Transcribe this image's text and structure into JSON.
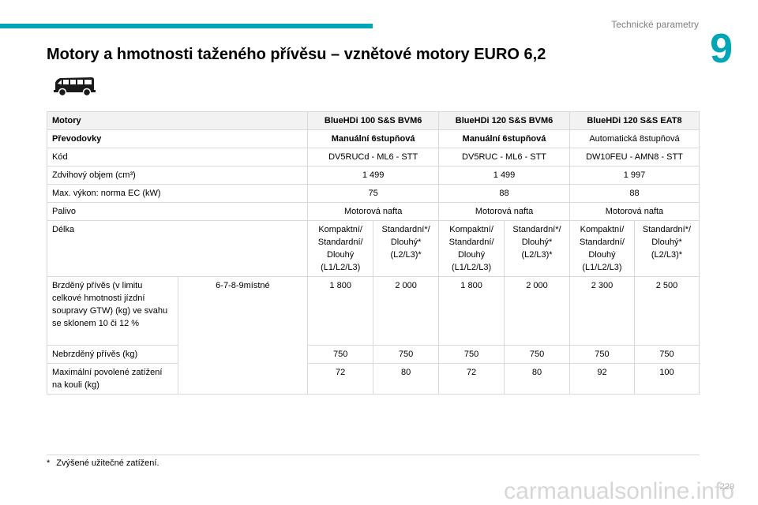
{
  "header": {
    "section_title": "Technické parametry",
    "chapter_number": "9",
    "accent_color": "#00a6b5"
  },
  "page_title": "Motory a hmotnosti taženého přívěsu – vznětové motory EURO 6,2",
  "vehicle_icon": "van-icon",
  "table": {
    "engines_label": "Motory",
    "engines": [
      "BlueHDi 100 S&S BVM6",
      "BlueHDi 120 S&S BVM6",
      "BlueHDi 120 S&S EAT8"
    ],
    "gearbox_label": "Převodovky",
    "gearboxes": [
      "Manuální 6stupňová",
      "Manuální 6stupňová",
      "Automatická 8stupňová"
    ],
    "code_label": "Kód",
    "codes": [
      "DV5RUCd - ML6 - STT",
      "DV5RUC - ML6 - STT",
      "DW10FEU - AMN8 - STT"
    ],
    "displacement_label": "Zdvihový objem (cm³)",
    "displacements": [
      "1 499",
      "1 499",
      "1 997"
    ],
    "power_label": "Max. výkon: norma EC (kW)",
    "powers": [
      "75",
      "88",
      "88"
    ],
    "fuel_label": "Palivo",
    "fuels": [
      "Motorová nafta",
      "Motorová nafta",
      "Motorová nafta"
    ],
    "length_label": "Délka",
    "lengths": [
      "Kompaktní/ Standardní/ Dlouhý (L1/L2/L3)",
      "Standardní*/ Dlouhý* (L2/L3)*",
      "Kompaktní/ Standardní/ Dlouhý (L1/L2/L3)",
      "Standardní*/ Dlouhý* (L2/L3)*",
      "Kompaktní/ Standardní/ Dlouhý (L1/L2/L3)",
      "Standardní*/ Dlouhý* (L2/L3)*"
    ],
    "seats_label": "6-7-8-9místné",
    "braked_label": "Brzděný přívěs (v limitu celkové hmotnosti jízdní soupravy GTW) (kg) ve svahu se sklonem 10 či 12 %",
    "braked_values": [
      "1 800",
      "2 000",
      "1 800",
      "2 000",
      "2 300",
      "2 500"
    ],
    "unbraked_label": "Nebrzděný přívěs (kg)",
    "unbraked_values": [
      "750",
      "750",
      "750",
      "750",
      "750",
      "750"
    ],
    "ball_label": "Maximální povolené zatížení na kouli (kg)",
    "ball_values": [
      "72",
      "80",
      "72",
      "80",
      "92",
      "100"
    ]
  },
  "footnote": {
    "marker": "*",
    "text": "Zvýšené užitečné zatížení."
  },
  "page_number": "229",
  "watermark": "carmanualsonline.info"
}
